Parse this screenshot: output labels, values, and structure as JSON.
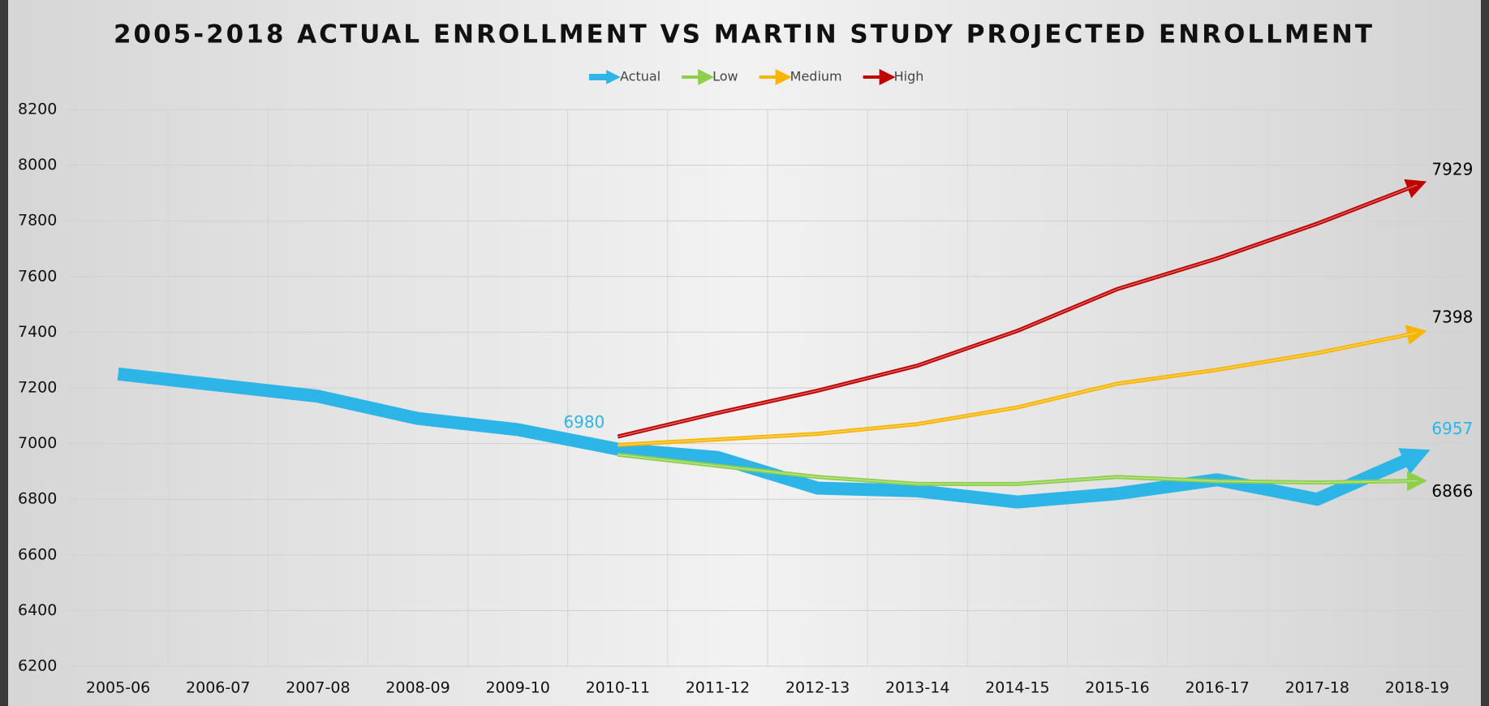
{
  "chart_data": {
    "type": "line",
    "title": "2005-2018 ACTUAL ENROLLMENT VS MARTIN STUDY PROJECTED ENROLLMENT",
    "categories": [
      "2005-06",
      "2006-07",
      "2007-08",
      "2008-09",
      "2009-10",
      "2010-11",
      "2011-12",
      "2012-13",
      "2013-14",
      "2014-15",
      "2015-16",
      "2016-17",
      "2017-18",
      "2018-19"
    ],
    "series": [
      {
        "name": "Actual",
        "color": "#2cb5e6",
        "values": [
          7250,
          7210,
          7170,
          7090,
          7050,
          6980,
          6950,
          6840,
          6830,
          6790,
          6820,
          6870,
          6800,
          6957
        ],
        "data_labels": [
          5,
          13
        ],
        "label_color": "#2cb5e6",
        "label_position": "above"
      },
      {
        "name": "Low",
        "color": "#8dcf4a",
        "values": [
          null,
          null,
          null,
          null,
          null,
          6960,
          6920,
          6880,
          6855,
          6855,
          6880,
          6865,
          6860,
          6866
        ],
        "data_labels": [
          13
        ],
        "label_color": "#000000",
        "label_position": "below"
      },
      {
        "name": "Medium",
        "color": "#f7b500",
        "values": [
          null,
          null,
          null,
          null,
          null,
          6995,
          7015,
          7035,
          7070,
          7130,
          7215,
          7265,
          7325,
          7398
        ],
        "data_labels": [
          13
        ],
        "label_color": "#000000",
        "label_position": "above"
      },
      {
        "name": "High",
        "color": "#c00000",
        "values": [
          null,
          null,
          null,
          null,
          null,
          7025,
          7110,
          7190,
          7280,
          7405,
          7555,
          7665,
          7790,
          7929
        ],
        "data_labels": [
          13
        ],
        "label_color": "#000000",
        "label_position": "above"
      }
    ],
    "ylim": [
      6200,
      8200
    ],
    "yticks": [
      6200,
      6400,
      6600,
      6800,
      7000,
      7200,
      7400,
      7600,
      7800,
      8000,
      8200
    ],
    "grid": true,
    "legend": "top"
  }
}
